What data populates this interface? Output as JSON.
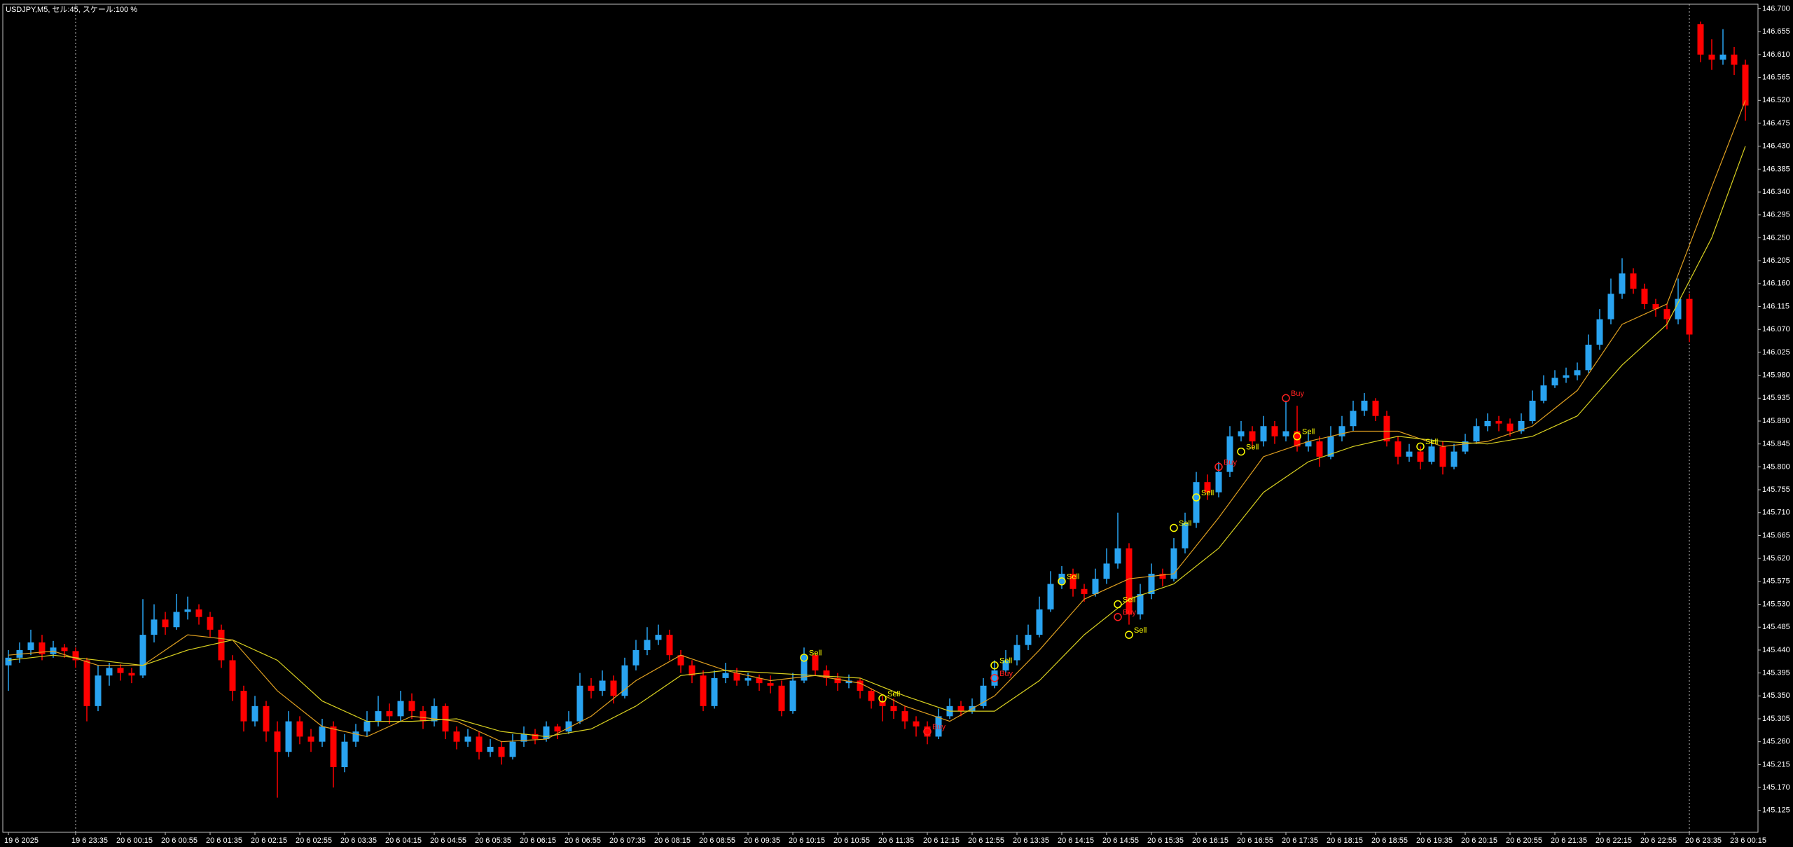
{
  "chart_data": {
    "type": "candlestick",
    "title": "USDJPY,M5, セル:45, スケール:100 %",
    "bull_color": "#29a3f0",
    "bear_color": "#ff0000",
    "ylim": [
      145.082,
      146.709
    ],
    "yticks": [
      145.125,
      {
        "value": 145.17,
        "label": "145.170"
      },
      145.215,
      {
        "value": 145.26,
        "label": "145.260"
      },
      145.305,
      {
        "value": 145.35,
        "label": "145.350"
      },
      145.395,
      {
        "value": 145.44,
        "label": "145.440"
      },
      145.485,
      {
        "value": 145.53,
        "label": "145.530"
      },
      145.575,
      {
        "value": 145.62,
        "label": "145.620"
      },
      145.665,
      {
        "value": 145.71,
        "label": "145.710"
      },
      145.755,
      {
        "value": 145.8,
        "label": "145.800"
      },
      145.845,
      {
        "value": 145.89,
        "label": "145.890"
      },
      145.935,
      {
        "value": 145.98,
        "label": "145.980"
      },
      146.025,
      {
        "value": 146.07,
        "label": "146.070"
      },
      146.115,
      {
        "value": 146.16,
        "label": "146.160"
      },
      146.205,
      {
        "value": 146.25,
        "label": "146.250"
      },
      146.295,
      {
        "value": 146.34,
        "label": "146.340"
      },
      146.385,
      {
        "value": 146.43,
        "label": "146.430"
      },
      146.475,
      {
        "value": 146.52,
        "label": "146.520"
      },
      146.565,
      {
        "value": 146.61,
        "label": "146.610"
      },
      146.655,
      {
        "value": 146.7,
        "label": "146.700"
      }
    ],
    "xticks": [
      {
        "value": 0,
        "label": "19 6 2025"
      },
      {
        "value": 6,
        "label": "19 6 23:35"
      },
      {
        "value": 10,
        "label": "20 6 00:15"
      },
      {
        "value": 14,
        "label": "20 6 00:55"
      },
      {
        "value": 18,
        "label": "20 6 01:35"
      },
      {
        "value": 22,
        "label": "20 6 02:15"
      },
      {
        "value": 26,
        "label": "20 6 02:55"
      },
      {
        "value": 30,
        "label": "20 6 03:35"
      },
      {
        "value": 34,
        "label": "20 6 04:15"
      },
      {
        "value": 38,
        "label": "20 6 04:55"
      },
      {
        "value": 42,
        "label": "20 6 05:35"
      },
      {
        "value": 46,
        "label": "20 6 06:15"
      },
      {
        "value": 50,
        "label": "20 6 06:55"
      },
      {
        "value": 54,
        "label": "20 6 07:35"
      },
      {
        "value": 58,
        "label": "20 6 08:15"
      },
      {
        "value": 62,
        "label": "20 6 08:55"
      },
      {
        "value": 66,
        "label": "20 6 09:35"
      },
      {
        "value": 70,
        "label": "20 6 10:15"
      },
      {
        "value": 74,
        "label": "20 6 10:55"
      },
      {
        "value": 78,
        "label": "20 6 11:35"
      },
      {
        "value": 82,
        "label": "20 6 12:15"
      },
      {
        "value": 86,
        "label": "20 6 12:55"
      },
      {
        "value": 90,
        "label": "20 6 13:35"
      },
      {
        "value": 94,
        "label": "20 6 14:15"
      },
      {
        "value": 98,
        "label": "20 6 14:55"
      },
      {
        "value": 102,
        "label": "20 6 15:35"
      },
      {
        "value": 106,
        "label": "20 6 16:15"
      },
      {
        "value": 110,
        "label": "20 6 16:55"
      },
      {
        "value": 114,
        "label": "20 6 17:35"
      },
      {
        "value": 118,
        "label": "20 6 18:15"
      },
      {
        "value": 122,
        "label": "20 6 18:55"
      },
      {
        "value": 126,
        "label": "20 6 19:35"
      },
      {
        "value": 130,
        "label": "20 6 20:15"
      },
      {
        "value": 134,
        "label": "20 6 20:55"
      },
      {
        "value": 138,
        "label": "20 6 21:35"
      },
      {
        "value": 142,
        "label": "20 6 22:15"
      },
      {
        "value": 146,
        "label": "20 6 22:55"
      },
      {
        "value": 150,
        "label": "20 6 23:35"
      },
      {
        "value": 154,
        "label": "23 6 00:15"
      }
    ],
    "separators": [
      6,
      150
    ],
    "open": [
      145.41,
      145.425,
      145.44,
      145.455,
      145.432,
      145.445,
      145.438,
      145.42,
      145.33,
      145.39,
      145.405,
      145.395,
      145.39,
      145.47,
      145.5,
      145.485,
      145.515,
      145.52,
      145.505,
      145.48,
      145.42,
      145.36,
      145.3,
      145.33,
      145.28,
      145.24,
      145.3,
      145.27,
      145.26,
      145.29,
      145.21,
      145.26,
      145.28,
      145.3,
      145.32,
      145.31,
      145.34,
      145.32,
      145.3,
      145.33,
      145.28,
      145.26,
      145.27,
      145.24,
      145.25,
      145.23,
      145.26,
      145.275,
      145.265,
      145.29,
      145.28,
      145.3,
      145.37,
      145.36,
      145.38,
      145.35,
      145.41,
      145.44,
      145.46,
      145.47,
      145.43,
      145.41,
      145.39,
      145.33,
      145.385,
      145.395,
      145.38,
      145.385,
      145.375,
      145.37,
      145.32,
      145.38,
      145.43,
      145.4,
      145.385,
      145.375,
      145.38,
      145.36,
      145.34,
      145.33,
      145.32,
      145.3,
      145.29,
      145.27,
      145.31,
      145.33,
      145.32,
      145.33,
      145.37,
      145.4,
      145.42,
      145.45,
      145.47,
      145.52,
      145.57,
      145.59,
      145.56,
      145.55,
      145.58,
      145.61,
      145.64,
      145.51,
      145.55,
      145.59,
      145.58,
      145.64,
      145.69,
      145.77,
      145.75,
      145.79,
      145.86,
      145.87,
      145.85,
      145.88,
      145.86,
      145.87,
      145.84,
      145.85,
      145.82,
      145.86,
      145.88,
      145.91,
      145.93,
      145.9,
      145.85,
      145.82,
      145.83,
      145.81,
      145.84,
      145.8,
      145.83,
      145.85,
      145.88,
      145.89,
      145.885,
      145.87,
      145.89,
      145.93,
      145.96,
      145.975,
      145.98,
      145.99,
      146.04,
      146.09,
      146.14,
      146.18,
      146.15,
      146.12,
      146.11,
      146.09,
      146.13,
      146.67,
      146.61,
      146.6,
      146.61,
      146.59
    ],
    "high": [
      145.44,
      145.455,
      145.48,
      145.47,
      145.458,
      145.452,
      145.445,
      145.425,
      145.41,
      145.415,
      145.412,
      145.405,
      145.54,
      145.53,
      145.515,
      145.55,
      145.545,
      145.53,
      145.515,
      145.49,
      145.43,
      145.37,
      145.35,
      145.34,
      145.3,
      145.32,
      145.31,
      145.285,
      145.305,
      145.3,
      145.275,
      145.295,
      145.32,
      145.35,
      145.335,
      145.36,
      145.355,
      145.33,
      145.345,
      145.335,
      145.29,
      145.285,
      145.28,
      145.265,
      145.26,
      145.275,
      145.29,
      145.285,
      145.3,
      145.295,
      145.32,
      145.395,
      145.385,
      145.4,
      145.39,
      145.425,
      145.46,
      145.485,
      145.49,
      145.48,
      145.44,
      145.42,
      145.4,
      145.4,
      145.415,
      145.405,
      145.395,
      145.392,
      145.39,
      145.38,
      145.395,
      145.445,
      145.435,
      145.41,
      145.395,
      145.392,
      145.385,
      145.365,
      145.35,
      145.345,
      145.33,
      145.31,
      145.3,
      145.325,
      145.345,
      145.34,
      145.345,
      145.385,
      145.42,
      145.44,
      145.47,
      145.49,
      145.545,
      145.595,
      145.605,
      145.6,
      145.57,
      145.6,
      145.64,
      145.71,
      145.65,
      145.57,
      145.61,
      145.6,
      145.66,
      145.71,
      145.79,
      145.785,
      145.81,
      145.88,
      145.89,
      145.88,
      145.9,
      145.89,
      145.93,
      145.92,
      145.87,
      145.86,
      145.88,
      145.9,
      145.93,
      145.945,
      145.935,
      145.91,
      145.86,
      145.845,
      145.84,
      145.855,
      145.85,
      145.845,
      145.865,
      145.895,
      145.905,
      145.9,
      145.895,
      145.905,
      145.95,
      145.98,
      145.99,
      145.995,
      146.005,
      146.06,
      146.11,
      146.17,
      146.21,
      146.19,
      146.16,
      146.13,
      146.12,
      146.17,
      146.14,
      146.675,
      146.64,
      146.66,
      146.625,
      146.6
    ],
    "low": [
      145.36,
      145.415,
      145.43,
      145.42,
      145.425,
      145.425,
      145.405,
      145.3,
      145.32,
      145.37,
      145.38,
      145.375,
      145.385,
      145.455,
      145.47,
      145.48,
      145.5,
      145.49,
      145.465,
      145.405,
      145.34,
      145.28,
      145.29,
      145.26,
      145.15,
      145.23,
      145.255,
      145.24,
      145.25,
      145.17,
      145.2,
      145.25,
      145.27,
      145.29,
      145.295,
      145.3,
      145.305,
      145.285,
      145.29,
      145.265,
      145.245,
      145.25,
      145.225,
      145.23,
      145.215,
      145.225,
      145.25,
      145.255,
      145.26,
      145.265,
      145.275,
      145.295,
      145.345,
      145.35,
      145.335,
      145.345,
      145.4,
      145.43,
      145.45,
      145.42,
      145.395,
      145.375,
      145.32,
      145.325,
      145.375,
      145.37,
      145.37,
      145.36,
      145.355,
      145.31,
      145.315,
      145.375,
      145.39,
      145.37,
      145.36,
      145.365,
      145.345,
      145.325,
      145.3,
      145.305,
      145.285,
      145.27,
      145.255,
      145.265,
      145.305,
      145.31,
      145.315,
      145.325,
      145.365,
      145.395,
      145.41,
      145.44,
      145.465,
      145.515,
      145.56,
      145.545,
      145.535,
      145.545,
      145.57,
      145.6,
      145.49,
      145.5,
      145.54,
      145.565,
      145.575,
      145.63,
      145.68,
      145.735,
      145.74,
      145.78,
      145.85,
      145.835,
      145.84,
      145.845,
      145.85,
      145.83,
      145.83,
      145.8,
      145.815,
      145.85,
      145.87,
      145.9,
      145.89,
      145.84,
      145.805,
      145.81,
      145.795,
      145.805,
      145.785,
      145.795,
      145.825,
      145.845,
      145.87,
      145.87,
      145.86,
      145.865,
      145.885,
      145.925,
      145.955,
      145.965,
      145.97,
      145.985,
      146.03,
      146.08,
      146.13,
      146.14,
      146.11,
      146.095,
      146.07,
      146.08,
      146.045,
      146.595,
      146.58,
      146.59,
      146.57,
      146.48
    ],
    "close": [
      145.425,
      145.44,
      145.455,
      145.432,
      145.445,
      145.438,
      145.42,
      145.33,
      145.39,
      145.405,
      145.395,
      145.39,
      145.47,
      145.5,
      145.485,
      145.515,
      145.52,
      145.505,
      145.48,
      145.42,
      145.36,
      145.3,
      145.33,
      145.28,
      145.24,
      145.3,
      145.27,
      145.26,
      145.29,
      145.21,
      145.26,
      145.28,
      145.3,
      145.32,
      145.31,
      145.34,
      145.32,
      145.3,
      145.33,
      145.28,
      145.26,
      145.27,
      145.24,
      145.25,
      145.23,
      145.26,
      145.275,
      145.265,
      145.29,
      145.28,
      145.3,
      145.37,
      145.36,
      145.38,
      145.35,
      145.41,
      145.44,
      145.46,
      145.47,
      145.43,
      145.41,
      145.39,
      145.33,
      145.385,
      145.395,
      145.38,
      145.385,
      145.375,
      145.37,
      145.32,
      145.38,
      145.43,
      145.4,
      145.385,
      145.375,
      145.38,
      145.36,
      145.34,
      145.33,
      145.32,
      145.3,
      145.29,
      145.27,
      145.31,
      145.33,
      145.32,
      145.33,
      145.37,
      145.4,
      145.42,
      145.45,
      145.47,
      145.52,
      145.57,
      145.59,
      145.56,
      145.55,
      145.58,
      145.61,
      145.64,
      145.51,
      145.55,
      145.59,
      145.58,
      145.64,
      145.69,
      145.77,
      145.75,
      145.79,
      145.86,
      145.87,
      145.85,
      145.88,
      145.86,
      145.87,
      145.84,
      145.85,
      145.82,
      145.86,
      145.88,
      145.91,
      145.93,
      145.9,
      145.85,
      145.82,
      145.83,
      145.81,
      145.84,
      145.8,
      145.83,
      145.85,
      145.88,
      145.89,
      145.885,
      145.87,
      145.89,
      145.93,
      145.96,
      145.975,
      145.98,
      145.99,
      146.04,
      146.09,
      146.14,
      146.18,
      146.15,
      146.12,
      146.11,
      146.09,
      146.13,
      146.06,
      146.61,
      146.6,
      146.61,
      146.59,
      146.51
    ],
    "indicators": [
      {
        "color": "#e0a020",
        "x": [
          0,
          4,
          8,
          12,
          16,
          20,
          24,
          28,
          32,
          36,
          40,
          44,
          48,
          52,
          56,
          60,
          64,
          68,
          72,
          76,
          80,
          84,
          88,
          92,
          96,
          100,
          104,
          108,
          112,
          116,
          120,
          124,
          128,
          132,
          136,
          140,
          144,
          148,
          152,
          155
        ],
        "values": [
          145.43,
          145.438,
          145.41,
          145.41,
          145.47,
          145.46,
          145.36,
          145.29,
          145.27,
          145.31,
          145.3,
          145.26,
          145.265,
          145.31,
          145.38,
          145.43,
          145.4,
          145.38,
          145.39,
          145.375,
          145.33,
          145.3,
          145.35,
          145.44,
          145.54,
          145.58,
          145.59,
          145.7,
          145.82,
          145.85,
          145.87,
          145.87,
          145.84,
          145.85,
          145.88,
          145.95,
          146.08,
          146.12,
          146.35,
          146.52
        ]
      },
      {
        "color": "#d8d020",
        "x": [
          0,
          4,
          8,
          12,
          16,
          20,
          24,
          28,
          32,
          36,
          40,
          44,
          48,
          52,
          56,
          60,
          64,
          68,
          72,
          76,
          80,
          84,
          88,
          92,
          96,
          100,
          104,
          108,
          112,
          116,
          120,
          124,
          128,
          132,
          136,
          140,
          144,
          148,
          152,
          155
        ],
        "values": [
          145.42,
          145.43,
          145.42,
          145.41,
          145.44,
          145.46,
          145.42,
          145.34,
          145.3,
          145.3,
          145.305,
          145.28,
          145.27,
          145.285,
          145.33,
          145.39,
          145.4,
          145.395,
          145.39,
          145.385,
          145.35,
          145.32,
          145.32,
          145.38,
          145.47,
          145.54,
          145.57,
          145.64,
          145.75,
          145.81,
          145.84,
          145.86,
          145.85,
          145.845,
          145.86,
          145.9,
          146.0,
          146.08,
          146.25,
          146.43
        ]
      }
    ],
    "annotations": [
      {
        "x": 71,
        "y": 145.425,
        "label": "Sell",
        "color": "#ffff00"
      },
      {
        "x": 78,
        "y": 145.345,
        "label": "Sell",
        "color": "#ffff00"
      },
      {
        "x": 82,
        "y": 145.28,
        "label": "Buy",
        "color": "#ff2020"
      },
      {
        "x": 88,
        "y": 145.41,
        "label": "Sell",
        "color": "#ffff00"
      },
      {
        "x": 88,
        "y": 145.385,
        "label": "Buy",
        "color": "#ff2020"
      },
      {
        "x": 94,
        "y": 145.575,
        "label": "Sell",
        "color": "#ffff00"
      },
      {
        "x": 99,
        "y": 145.53,
        "label": "Sell",
        "color": "#ffff00"
      },
      {
        "x": 99,
        "y": 145.505,
        "label": "Buy",
        "color": "#ff2020"
      },
      {
        "x": 100,
        "y": 145.47,
        "label": "Sell",
        "color": "#ffff00"
      },
      {
        "x": 104,
        "y": 145.68,
        "label": "Sell",
        "color": "#ffff00"
      },
      {
        "x": 106,
        "y": 145.74,
        "label": "Sell",
        "color": "#ffff00"
      },
      {
        "x": 108,
        "y": 145.8,
        "label": "Buy",
        "color": "#ff2020"
      },
      {
        "x": 110,
        "y": 145.83,
        "label": "Sell",
        "color": "#ffff00"
      },
      {
        "x": 114,
        "y": 145.935,
        "label": "Buy",
        "color": "#ff2020"
      },
      {
        "x": 115,
        "y": 145.86,
        "label": "Sell",
        "color": "#ffff00"
      },
      {
        "x": 126,
        "y": 145.84,
        "label": "Sell",
        "color": "#ffff00"
      }
    ]
  }
}
